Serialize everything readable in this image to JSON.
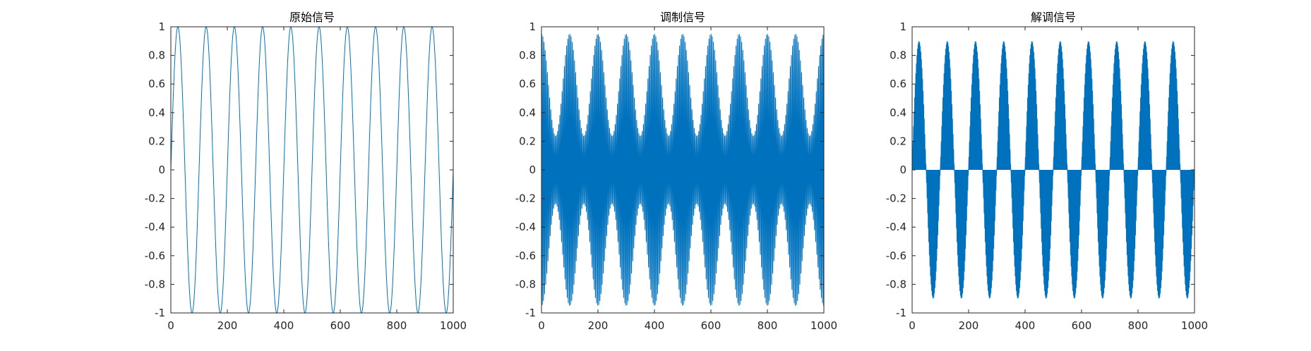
{
  "chart_data": [
    {
      "type": "line",
      "title": "原始信号",
      "xlim": [
        0,
        1000
      ],
      "ylim": [
        -1,
        1
      ],
      "xticks": [
        0,
        200,
        400,
        600,
        800,
        1000
      ],
      "xtick_labels": [
        "0",
        "200",
        "400",
        "600",
        "800",
        "1000"
      ],
      "yticks": [
        1,
        0.8,
        0.6,
        0.4,
        0.2,
        0,
        -0.2,
        -0.4,
        -0.6,
        -0.8,
        -1
      ],
      "ytick_labels": [
        "1",
        "0.8",
        "0.6",
        "0.4",
        "0.2",
        "0",
        "-0.2",
        "-0.4",
        "-0.6",
        "-0.8",
        "-1"
      ],
      "grid": false,
      "color": "#0072BD",
      "series": [
        {
          "function": "sin",
          "amplitude": 1,
          "cycles_over_xlim": 10,
          "phase_deg": 0
        }
      ]
    },
    {
      "type": "line",
      "title": "调制信号",
      "xlim": [
        0,
        1000
      ],
      "ylim": [
        -1,
        1
      ],
      "xticks": [
        0,
        200,
        400,
        600,
        800,
        1000
      ],
      "xtick_labels": [
        "0",
        "200",
        "400",
        "600",
        "800",
        "1000"
      ],
      "yticks": [
        1,
        0.8,
        0.6,
        0.4,
        0.2,
        0,
        -0.2,
        -0.4,
        -0.6,
        -0.8,
        -1
      ],
      "ytick_labels": [
        "1",
        "0.8",
        "0.6",
        "0.4",
        "0.2",
        "0",
        "-0.2",
        "-0.4",
        "-0.6",
        "-0.8",
        "-1"
      ],
      "grid": false,
      "color": "#0072BD",
      "series": [
        {
          "function": "am",
          "peak": 0.95,
          "carrier_cycles_over_xlim": 250,
          "message_cycles_over_xlim": 10,
          "modulation_index": 0.6
        }
      ]
    },
    {
      "type": "line",
      "title": "解调信号",
      "xlim": [
        0,
        1000
      ],
      "ylim": [
        -1,
        1
      ],
      "xticks": [
        0,
        200,
        400,
        600,
        800,
        1000
      ],
      "xtick_labels": [
        "0",
        "200",
        "400",
        "600",
        "800",
        "1000"
      ],
      "yticks": [
        1,
        0.8,
        0.6,
        0.4,
        0.2,
        0,
        -0.2,
        -0.4,
        -0.6,
        -0.8,
        -1
      ],
      "ytick_labels": [
        "1",
        "0.8",
        "0.6",
        "0.4",
        "0.2",
        "0",
        "-0.2",
        "-0.4",
        "-0.6",
        "-0.8",
        "-1"
      ],
      "grid": false,
      "color": "#0072BD",
      "series": [
        {
          "function": "demod",
          "peak": 0.9,
          "carrier_cycles_over_xlim": 250,
          "message_cycles_over_xlim": 10
        }
      ]
    }
  ]
}
